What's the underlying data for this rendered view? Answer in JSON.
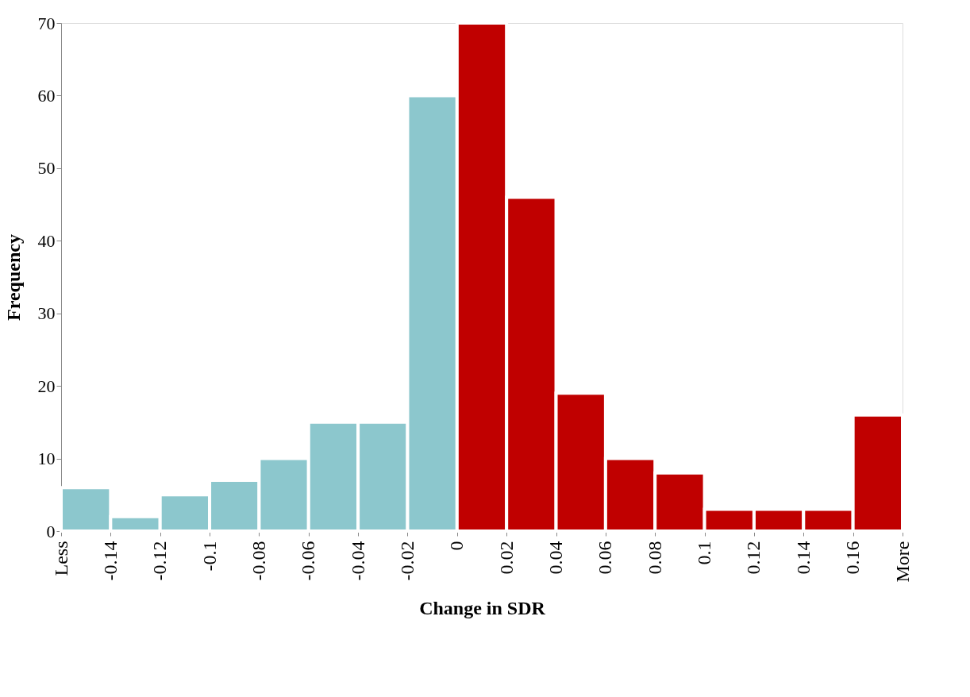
{
  "chart_data": {
    "type": "histogram",
    "xlabel": "Change in SDR",
    "ylabel": "Frequency",
    "bins": [
      -0.16,
      -0.14,
      -0.12,
      -0.1,
      -0.08,
      -0.06,
      -0.04,
      -0.02,
      0,
      0.02,
      0.04,
      0.06,
      0.08,
      0.1,
      0.12,
      0.14,
      0.16,
      0.18
    ],
    "values": [
      6,
      2,
      5,
      7,
      10,
      15,
      15,
      60,
      70,
      46,
      19,
      10,
      8,
      3,
      3,
      3,
      16
    ],
    "colors": [
      "#8cc7cd",
      "#8cc7cd",
      "#8cc7cd",
      "#8cc7cd",
      "#8cc7cd",
      "#8cc7cd",
      "#8cc7cd",
      "#8cc7cd",
      "#c00000",
      "#c00000",
      "#c00000",
      "#c00000",
      "#c00000",
      "#c00000",
      "#c00000",
      "#c00000",
      "#c00000"
    ],
    "xlim": [
      -0.16,
      0.18
    ],
    "xticks": [
      {
        "value": -0.16,
        "label": "Less"
      },
      -0.14,
      -0.12,
      -0.1,
      -0.08,
      -0.06,
      -0.04,
      -0.02,
      0,
      0.02,
      0.04,
      0.06,
      0.08,
      0.1,
      0.12,
      0.14,
      0.16,
      {
        "value": 0.18,
        "label": "More"
      }
    ],
    "ylim": [
      0,
      70
    ],
    "yticks": [
      0,
      10,
      20,
      30,
      40,
      50,
      60,
      70
    ],
    "grid": false
  }
}
